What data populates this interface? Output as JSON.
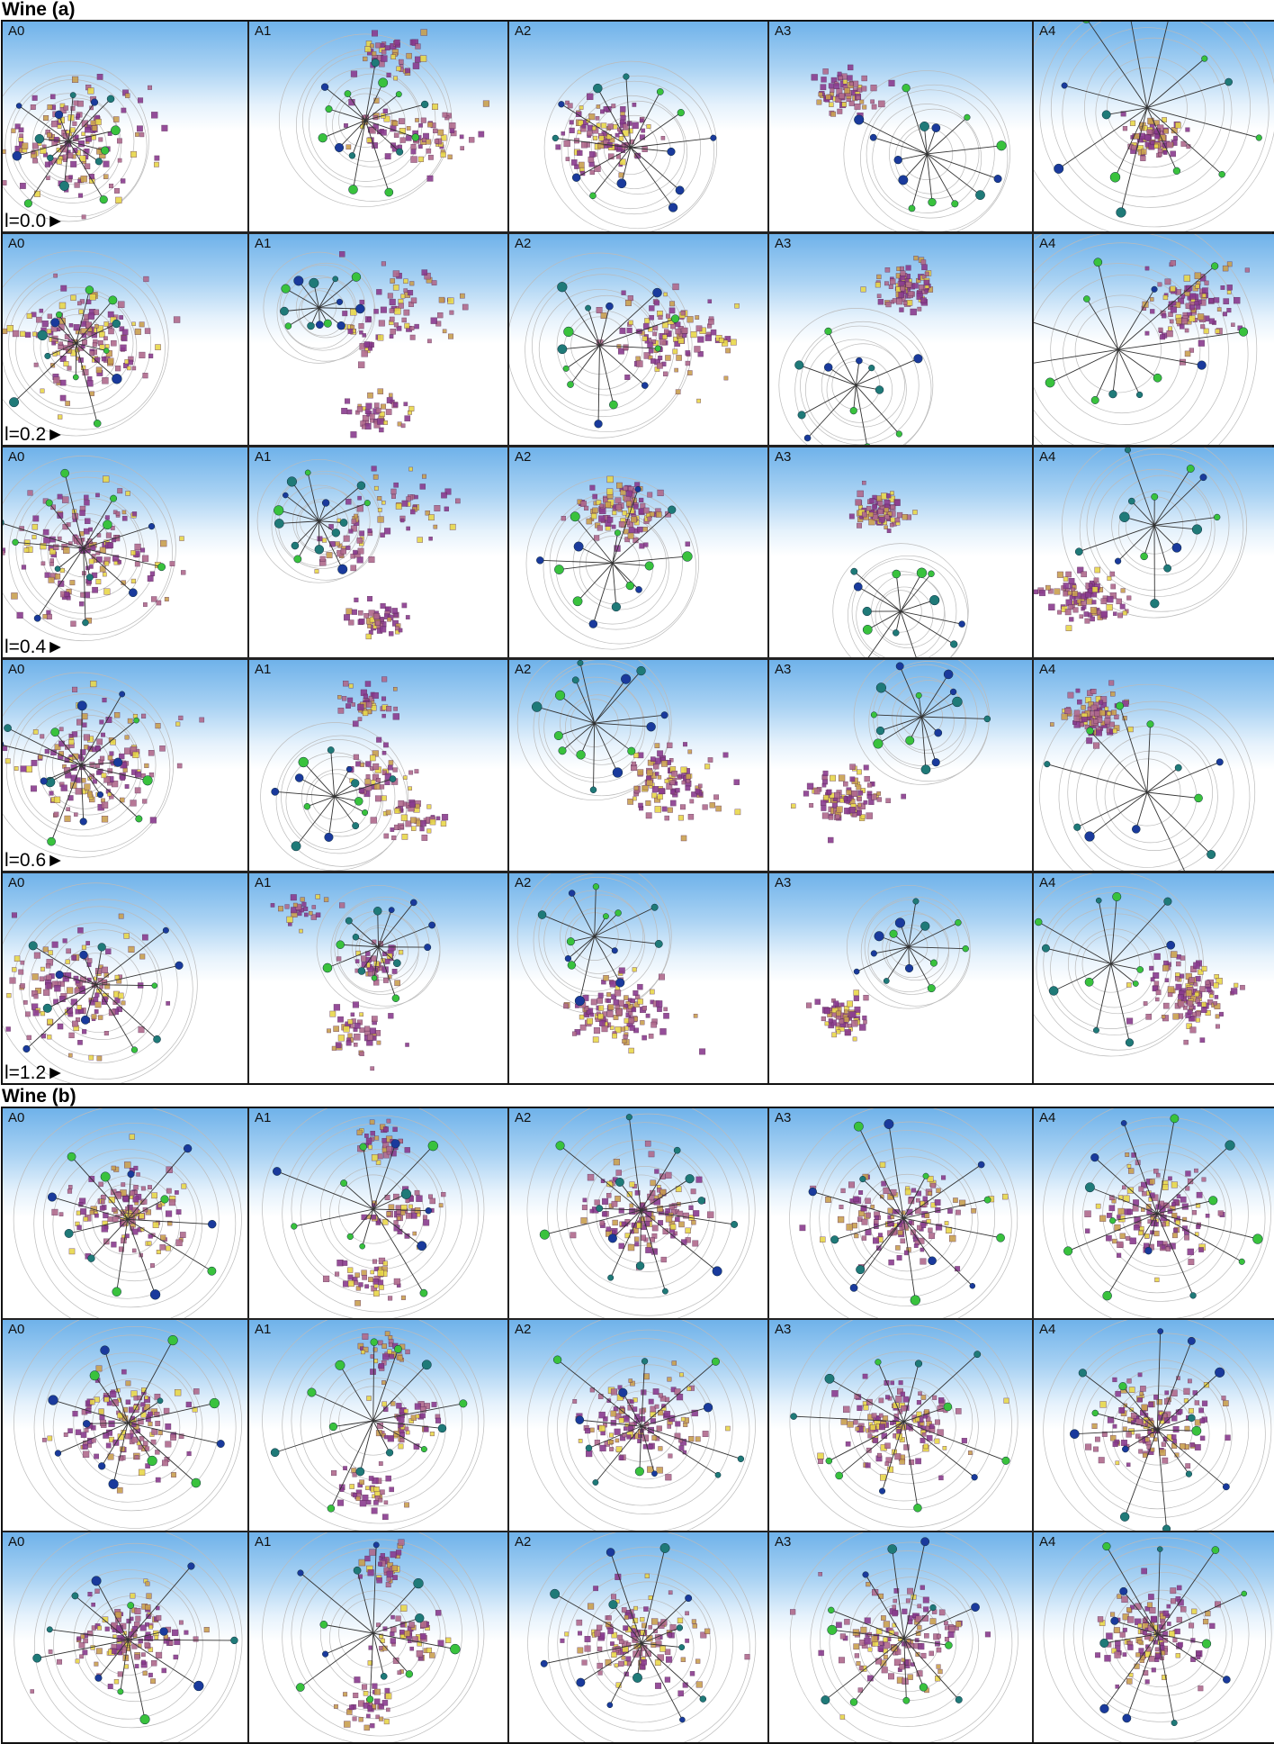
{
  "sections": [
    {
      "title": "Wine (a)",
      "columns": [
        "A0",
        "A1",
        "A2",
        "A3",
        "A4"
      ],
      "row_labels": [
        "l=0.0►",
        "l=0.2►",
        "l=0.4►",
        "l=0.6►",
        "l=1.2►"
      ]
    },
    {
      "title": "Wine (b)",
      "columns": [
        "A0",
        "A1",
        "A2",
        "A3",
        "A4"
      ],
      "rows": 3
    }
  ],
  "colors": {
    "sky_top": "#6fb2ea",
    "point_purple": "#8a3b8f",
    "point_mauve": "#b06a8c",
    "point_tan": "#c9a04f",
    "point_yellow": "#e8d84a",
    "anchor_blue": "#1a3a9c",
    "anchor_teal": "#1f7a78",
    "anchor_green": "#39c23d",
    "axis_line": "#333333",
    "circle": "#bbbbbb"
  },
  "chart_data": {
    "type": "scatter",
    "title": "",
    "description_of_marks": [
      "squares",
      "anchor axes"
    ],
    "grids": [
      {
        "section": "Wine (a)",
        "rows": 5,
        "cols": 5,
        "row_values": [
          "l=0.0",
          "l=0.2",
          "l=0.4",
          "l=0.6",
          "l=1.2"
        ]
      },
      {
        "section": "Wine (b)",
        "rows": 3,
        "cols": 5
      }
    ]
  }
}
